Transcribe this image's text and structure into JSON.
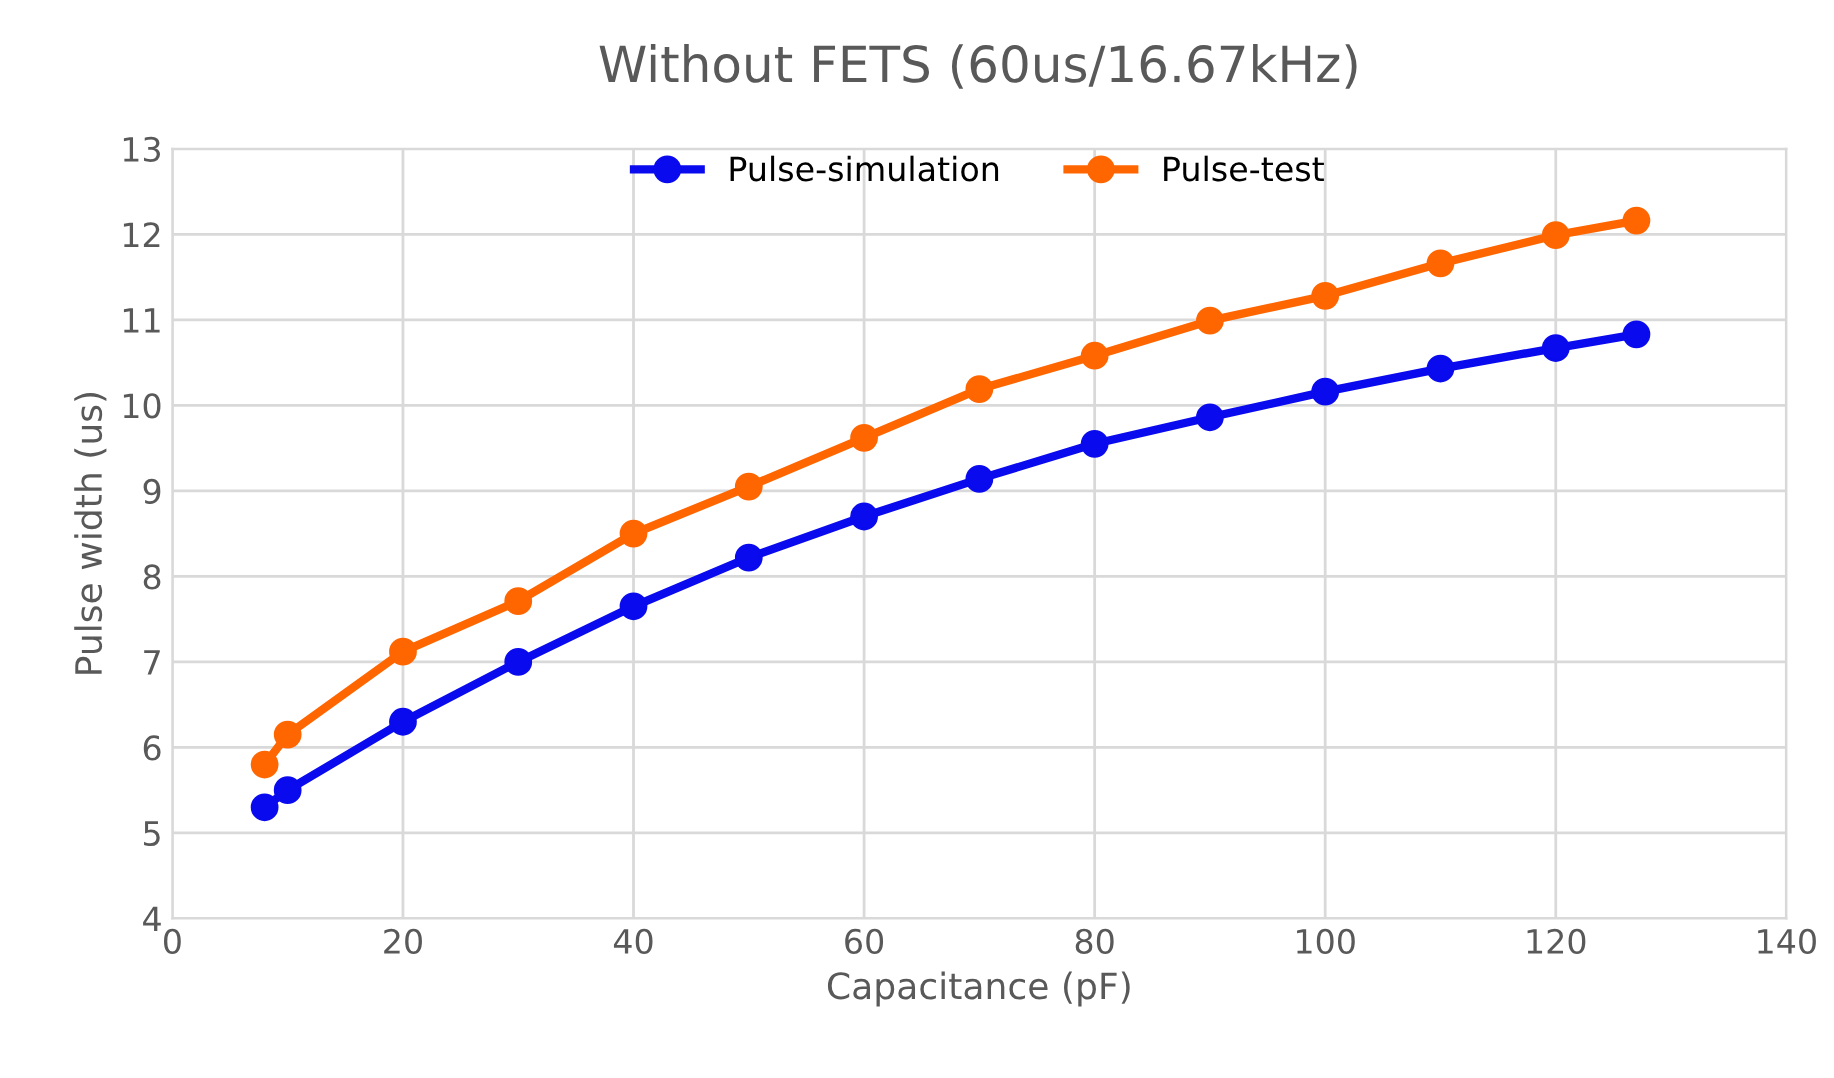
{
  "chart_data": {
    "type": "line",
    "title": "Without FETS (60us/16.67kHz)",
    "xlabel": "Capacitance (pF)",
    "ylabel": "Pulse width (us)",
    "x": [
      8,
      10,
      20,
      30,
      40,
      50,
      60,
      70,
      80,
      90,
      100,
      110,
      120,
      127
    ],
    "series": [
      {
        "name": "Pulse-simulation",
        "color": "#0a0aee",
        "values": [
          5.3,
          5.5,
          6.3,
          7.0,
          7.65,
          8.22,
          8.7,
          9.14,
          9.55,
          9.86,
          10.16,
          10.43,
          10.67,
          10.83
        ]
      },
      {
        "name": "Pulse-test",
        "color": "#ff6600",
        "values": [
          5.8,
          6.15,
          7.12,
          7.71,
          8.5,
          9.05,
          9.62,
          10.19,
          10.58,
          10.99,
          11.28,
          11.66,
          11.99,
          12.16
        ]
      }
    ],
    "xlim": [
      0,
      140
    ],
    "xticks": [
      0,
      20,
      40,
      60,
      80,
      100,
      120,
      140
    ],
    "ylim": [
      4,
      13
    ],
    "yticks": [
      4,
      5,
      6,
      7,
      8,
      9,
      10,
      11,
      12,
      13
    ],
    "grid": true,
    "legend": "top",
    "marker": "circle",
    "line_style": "solid"
  }
}
